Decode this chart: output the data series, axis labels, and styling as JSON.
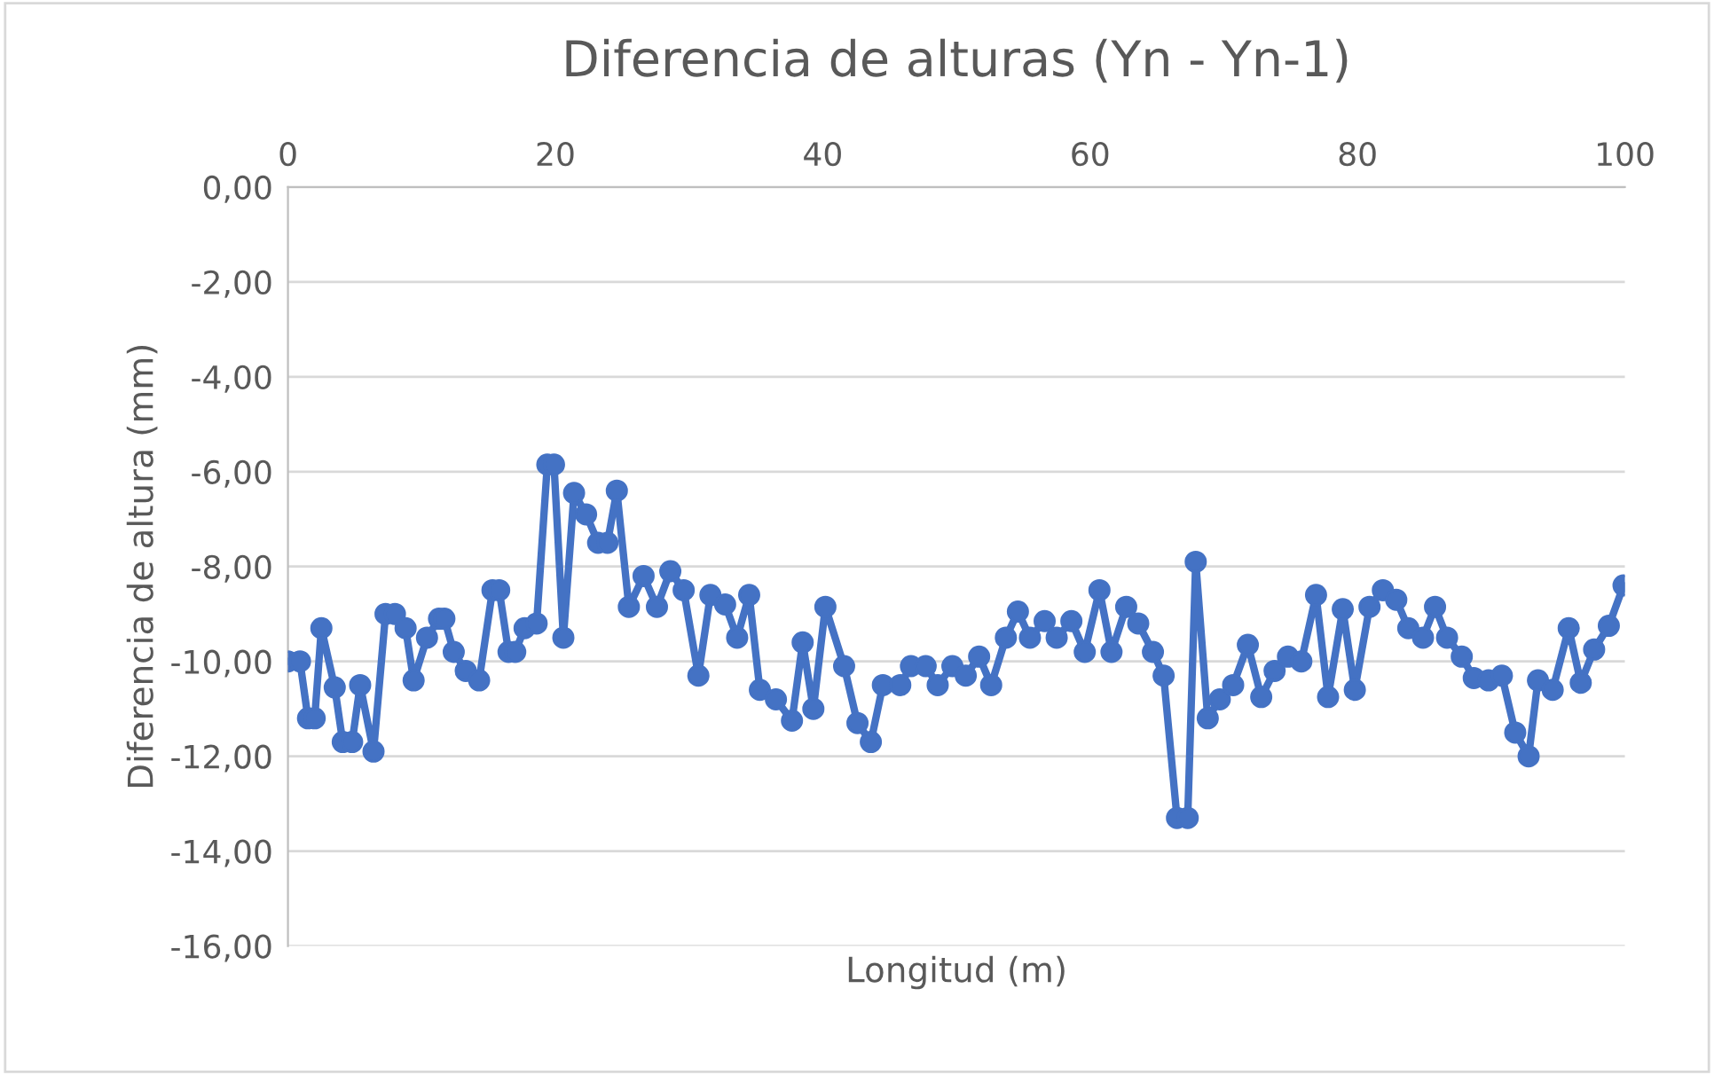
{
  "chart_data": {
    "type": "line",
    "title": "Diferencia de alturas (Yn - Yn-1)",
    "xlabel": "Longitud (m)",
    "ylabel": "Diferencia de altura (mm)",
    "x": [
      0.0,
      0.9,
      1.5,
      2.0,
      2.5,
      3.5,
      4.1,
      4.8,
      5.4,
      6.4,
      7.3,
      8.0,
      8.8,
      9.4,
      10.4,
      11.3,
      11.7,
      12.4,
      13.3,
      14.3,
      15.3,
      15.8,
      16.5,
      17.0,
      17.7,
      18.6,
      19.4,
      19.9,
      20.6,
      21.4,
      22.3,
      23.2,
      23.9,
      24.6,
      25.5,
      26.6,
      27.6,
      28.6,
      29.6,
      30.7,
      31.6,
      32.7,
      33.6,
      34.5,
      35.3,
      36.5,
      37.7,
      38.5,
      39.3,
      40.2,
      41.6,
      42.6,
      43.6,
      44.5,
      45.8,
      46.6,
      47.7,
      48.6,
      49.7,
      50.7,
      51.7,
      52.6,
      53.7,
      54.6,
      55.5,
      56.6,
      57.5,
      58.6,
      59.6,
      60.7,
      61.6,
      62.7,
      63.6,
      64.7,
      65.5,
      66.5,
      67.3,
      67.9,
      68.8,
      69.7,
      70.7,
      71.8,
      72.8,
      73.8,
      74.8,
      75.8,
      76.9,
      77.8,
      78.9,
      79.8,
      80.9,
      81.9,
      82.9,
      83.8,
      84.9,
      85.8,
      86.7,
      87.8,
      88.7,
      89.8,
      90.8,
      91.8,
      92.8,
      93.5,
      94.6,
      95.8,
      96.7,
      97.7,
      98.8,
      99.9
    ],
    "series": [
      {
        "color": "#4472c4",
        "values": [
          -10.0,
          -10.0,
          -11.2,
          -11.2,
          -9.3,
          -10.55,
          -11.7,
          -11.7,
          -10.5,
          -11.9,
          -9.0,
          -9.0,
          -9.3,
          -10.4,
          -9.5,
          -9.1,
          -9.1,
          -9.8,
          -10.2,
          -10.4,
          -8.5,
          -8.5,
          -9.8,
          -9.8,
          -9.3,
          -9.2,
          -5.85,
          -5.85,
          -9.5,
          -6.45,
          -6.9,
          -7.5,
          -7.5,
          -6.4,
          -8.85,
          -8.2,
          -8.85,
          -8.1,
          -8.5,
          -10.3,
          -8.6,
          -8.8,
          -9.5,
          -8.6,
          -10.6,
          -10.8,
          -11.25,
          -9.6,
          -11.0,
          -8.85,
          -10.1,
          -11.3,
          -11.7,
          -10.5,
          -10.5,
          -10.1,
          -10.1,
          -10.5,
          -10.1,
          -10.3,
          -9.9,
          -10.5,
          -9.5,
          -8.95,
          -9.5,
          -9.15,
          -9.5,
          -9.15,
          -9.8,
          -8.5,
          -9.8,
          -8.85,
          -9.2,
          -9.8,
          -10.3,
          -13.3,
          -13.3,
          -7.9,
          -11.2,
          -10.8,
          -10.5,
          -9.65,
          -10.75,
          -10.2,
          -9.9,
          -10.0,
          -8.6,
          -10.75,
          -8.9,
          -10.6,
          -8.85,
          -8.5,
          -8.7,
          -9.3,
          -9.5,
          -8.85,
          -9.5,
          -9.9,
          -10.35,
          -10.4,
          -10.3,
          -11.5,
          -12.0,
          -10.4,
          -10.6,
          -9.3,
          -10.45,
          -9.75,
          -9.25,
          -8.4
        ]
      }
    ],
    "xlim": [
      0,
      100
    ],
    "xticks": [
      0,
      20,
      40,
      60,
      80,
      100
    ],
    "ylim": [
      -16,
      0
    ],
    "yticks": [
      {
        "value": 0,
        "label": "0,00"
      },
      {
        "value": -2,
        "label": "-2,00"
      },
      {
        "value": -4,
        "label": "-4,00"
      },
      {
        "value": -6,
        "label": "-6,00"
      },
      {
        "value": -8,
        "label": "-8,00"
      },
      {
        "value": -10,
        "label": "-10,00"
      },
      {
        "value": -12,
        "label": "-12,00"
      },
      {
        "value": -14,
        "label": "-14,00"
      },
      {
        "value": -16,
        "label": "-16,00"
      }
    ],
    "grid": "y",
    "marker": "circle",
    "line_style": "solid",
    "legend": false
  }
}
